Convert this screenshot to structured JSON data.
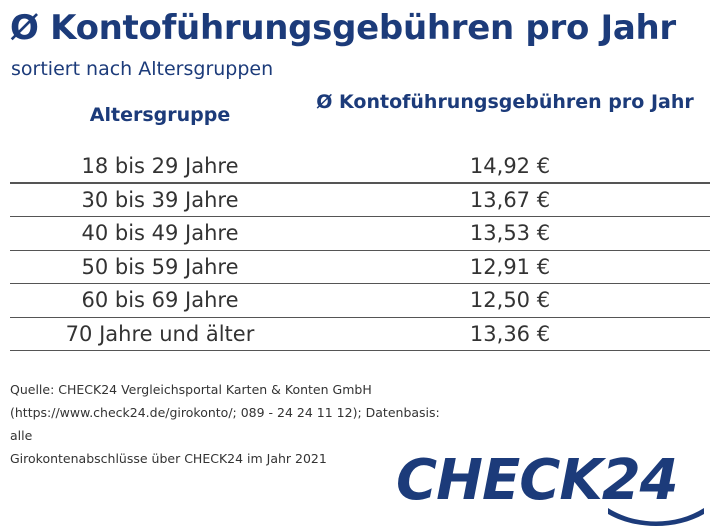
{
  "title": "Ø Kontoführungsgebühren pro Jahr",
  "subtitle": "sortiert nach Altersgruppen",
  "colors": {
    "brand_blue": "#1c3b7a",
    "text": "#333333",
    "rule": "#555555"
  },
  "chart_data": {
    "type": "table",
    "title": "Ø Kontoführungsgebühren pro Jahr",
    "subtitle": "sortiert nach Altersgruppen",
    "columns": [
      "Altersgruppe",
      "Ø Kontoführungsgebühren pro Jahr"
    ],
    "rows": [
      [
        "18 bis 29 Jahre",
        "14,92 €"
      ],
      [
        "30 bis 39 Jahre",
        "13,67 €"
      ],
      [
        "40 bis 49 Jahre",
        "13,53 €"
      ],
      [
        "50 bis 59 Jahre",
        "12,91 €"
      ],
      [
        "60 bis 69 Jahre",
        "12,50 €"
      ],
      [
        "70 Jahre und älter",
        "13,36 €"
      ]
    ]
  },
  "source": {
    "line1": "Quelle: CHECK24 Vergleichsportal Karten & Konten GmbH",
    "line2": "(https://www.check24.de/girokonto/; 089 - 24 24 11 12); Datenbasis: alle",
    "line3": "Girokontenabschlüsse über CHECK24 im Jahr 2021"
  },
  "logo": {
    "text": "CHECK24"
  }
}
